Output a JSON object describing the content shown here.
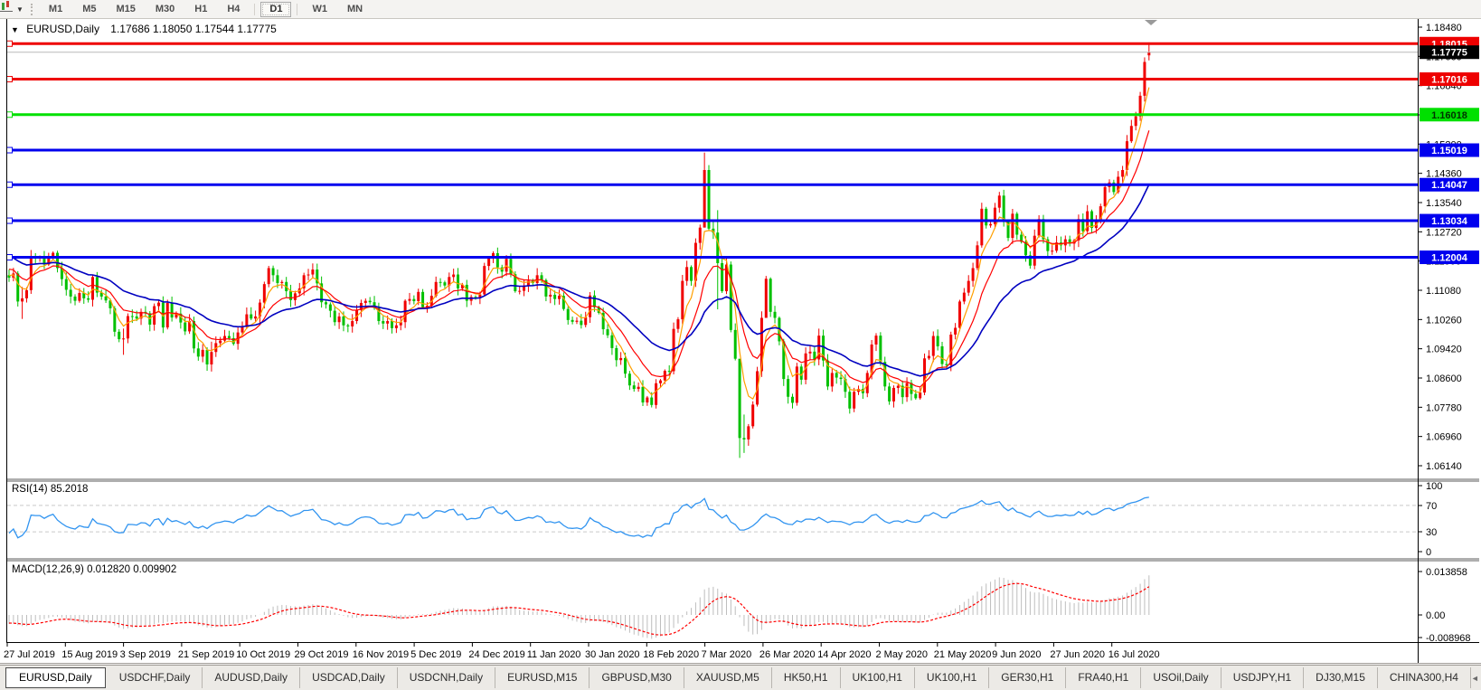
{
  "toolbar": {
    "timeframe_buttons": [
      "M1",
      "M5",
      "M15",
      "M30",
      "H1",
      "H4",
      "D1",
      "W1",
      "MN"
    ],
    "active_timeframe": "D1"
  },
  "icons": {
    "caret_down": "▼",
    "tab_prev": "◄",
    "tab_next": "►"
  },
  "chart": {
    "title": "EURUSD,Daily",
    "ohlc_text": "1.17686 1.18050 1.17544 1.17775"
  },
  "chart_data": {
    "type": "candlestick",
    "symbol": "EURUSD",
    "period": "Daily",
    "title": "EURUSD,Daily",
    "last_ohlc": {
      "open": 1.17686,
      "high": 1.1805,
      "low": 1.17544,
      "close": 1.17775
    },
    "current_price_label": "1.17775",
    "y_axis": {
      "top_value": 1.1848,
      "bottom_value": 1.0614,
      "tick_labels": [
        "1.18480",
        "1.17660",
        "1.16840",
        "1.16020",
        "1.15200",
        "1.14360",
        "1.13540",
        "1.12720",
        "1.11900",
        "1.11080",
        "1.10260",
        "1.09420",
        "1.08600",
        "1.07780",
        "1.06960",
        "1.06140"
      ]
    },
    "x_labels": [
      "27 Jul 2019",
      "15 Aug 2019",
      "3 Sep 2019",
      "21 Sep 2019",
      "10 Oct 2019",
      "29 Oct 2019",
      "16 Nov 2019",
      "5 Dec 2019",
      "24 Dec 2019",
      "11 Jan 2020",
      "30 Jan 2020",
      "18 Feb 2020",
      "7 Mar 2020",
      "26 Mar 2020",
      "14 Apr 2020",
      "2 May 2020",
      "21 May 2020",
      "9 Jun 2020",
      "27 Jun 2020",
      "16 Jul 2020"
    ],
    "closes": [
      1.1143,
      1.1155,
      1.1076,
      1.1085,
      1.1108,
      1.1203,
      1.12,
      1.12,
      1.118,
      1.1199,
      1.1213,
      1.117,
      1.1139,
      1.1109,
      1.109,
      1.1078,
      1.11,
      1.1085,
      1.1081,
      1.1145,
      1.1101,
      1.109,
      1.1079,
      1.1057,
      1.0991,
      1.097,
      1.0972,
      1.1035,
      1.1034,
      1.1028,
      1.1047,
      1.1043,
      1.1011,
      1.1063,
      1.1073,
      1.1003,
      1.1072,
      1.1031,
      1.1042,
      1.1017,
      1.0992,
      1.1021,
      1.0944,
      1.0921,
      1.094,
      1.0899,
      1.0934,
      1.0959,
      1.0966,
      1.0979,
      1.0973,
      1.0957,
      1.0989,
      1.1004,
      1.104,
      1.1028,
      1.1034,
      1.1073,
      1.1125,
      1.117,
      1.115,
      1.1128,
      1.1131,
      1.1105,
      1.108,
      1.1099,
      1.1113,
      1.115,
      1.1152,
      1.1166,
      1.1127,
      1.1074,
      1.1068,
      1.105,
      1.1018,
      1.1034,
      1.1009,
      1.1006,
      1.1021,
      1.1052,
      1.1072,
      1.1078,
      1.1074,
      1.1058,
      1.1021,
      1.1014,
      1.1021,
      1.1001,
      1.1009,
      1.1018,
      1.1078,
      1.1083,
      1.1077,
      1.1103,
      1.106,
      1.1064,
      1.1092,
      1.1131,
      1.113,
      1.1121,
      1.1145,
      1.1152,
      1.1113,
      1.1123,
      1.1078,
      1.1089,
      1.1087,
      1.1096,
      1.1176,
      1.1199,
      1.1212,
      1.1172,
      1.116,
      1.1196,
      1.1153,
      1.1105,
      1.1106,
      1.1121,
      1.1134,
      1.1128,
      1.115,
      1.1136,
      1.109,
      1.1095,
      1.1083,
      1.1092,
      1.1055,
      1.1024,
      1.1019,
      1.1022,
      1.101,
      1.1032,
      1.1093,
      1.106,
      1.1044,
      1.0998,
      1.0981,
      1.0945,
      1.0911,
      1.0917,
      1.0873,
      1.084,
      1.083,
      1.0836,
      1.0792,
      1.0806,
      1.0785,
      1.0846,
      1.0854,
      1.0881,
      1.088,
      1.0999,
      1.1026,
      1.1134,
      1.1173,
      1.1134,
      1.1241,
      1.1284,
      1.1446,
      1.1281,
      1.127,
      1.1184,
      1.1105,
      1.118,
      1.0996,
      1.0915,
      1.0692,
      1.0688,
      1.0725,
      1.0786,
      1.088,
      1.103,
      1.114,
      1.1047,
      1.103,
      1.0964,
      1.0858,
      1.0808,
      1.0791,
      1.0893,
      1.0856,
      1.093,
      1.0935,
      1.0913,
      1.098,
      1.091,
      1.0837,
      1.0875,
      1.0862,
      1.0858,
      1.0822,
      1.0775,
      1.0822,
      1.083,
      1.0818,
      1.0875,
      1.0955,
      1.098,
      1.0906,
      1.0837,
      1.0795,
      1.0833,
      1.0839,
      1.0807,
      1.0847,
      1.0816,
      1.0804,
      1.082,
      1.0916,
      1.0923,
      1.0979,
      1.095,
      1.09,
      1.0897,
      1.0983,
      1.1002,
      1.1076,
      1.1101,
      1.1134,
      1.117,
      1.1234,
      1.1337,
      1.129,
      1.1294,
      1.134,
      1.1374,
      1.1301,
      1.1255,
      1.1323,
      1.1264,
      1.1244,
      1.1206,
      1.1177,
      1.1261,
      1.1308,
      1.1251,
      1.1218,
      1.1219,
      1.1242,
      1.1234,
      1.1251,
      1.1239,
      1.1248,
      1.1308,
      1.1274,
      1.133,
      1.1283,
      1.13,
      1.1344,
      1.1398,
      1.1411,
      1.1384,
      1.1427,
      1.1446,
      1.1527,
      1.157,
      1.1597,
      1.1655,
      1.175,
      1.17775
    ],
    "warmup_closes": [
      1.118,
      1.12,
      1.1185,
      1.121,
      1.122,
      1.1195,
      1.1215,
      1.123,
      1.124,
      1.122,
      1.126,
      1.1285,
      1.13,
      1.132,
      1.134,
      1.138,
      1.137,
      1.139,
      1.1365,
      1.135,
      1.137,
      1.1385,
      1.136,
      1.134,
      1.132,
      1.13,
      1.131,
      1.129,
      1.128,
      1.127,
      1.1285,
      1.1275,
      1.1268,
      1.126,
      1.1252,
      1.127,
      1.1262,
      1.1248,
      1.124,
      1.1235,
      1.1228,
      1.122,
      1.1232,
      1.1225,
      1.1215,
      1.1208,
      1.12,
      1.1212,
      1.1205,
      1.1195,
      1.1188,
      1.118,
      1.1192,
      1.1185,
      1.1175,
      1.1168,
      1.116,
      1.1152,
      1.1145,
      1.1138
    ],
    "extremes": {
      "3": [
        1.1117,
        1.1027
      ],
      "26": [
        1.1,
        1.0926
      ],
      "46": [
        1.0963,
        1.0879
      ],
      "146": [
        1.0821,
        1.0778
      ],
      "158": [
        1.1495,
        1.1289
      ],
      "161": [
        1.1333,
        1.1054
      ],
      "166": [
        1.0831,
        1.0636
      ],
      "167": [
        1.0758,
        1.065
      ],
      "172": [
        1.1148,
        1.1087
      ]
    },
    "hlines": [
      {
        "value": 1.18015,
        "label": "1.18015",
        "color": "#ee0000",
        "text_color": "#ffffff"
      },
      {
        "value": 1.17016,
        "label": "1.17016",
        "color": "#ee0000",
        "text_color": "#ffffff"
      },
      {
        "value": 1.16018,
        "label": "1.16018",
        "color": "#00e000",
        "text_color": "#003300"
      },
      {
        "value": 1.15019,
        "label": "1.15019",
        "color": "#0000ee",
        "text_color": "#ffffff"
      },
      {
        "value": 1.14047,
        "label": "1.14047",
        "color": "#0000ee",
        "text_color": "#ffffff"
      },
      {
        "value": 1.13034,
        "label": "1.13034",
        "color": "#0000ee",
        "text_color": "#ffffff"
      },
      {
        "value": 1.12004,
        "label": "1.12004",
        "color": "#0000ee",
        "text_color": "#ffffff"
      }
    ],
    "moving_averages": [
      {
        "period": 5,
        "method": "ema",
        "color": "#ff9f00",
        "width": 1.2
      },
      {
        "period": 12,
        "method": "ema",
        "color": "#ff0000",
        "width": 1.2
      },
      {
        "period": 30,
        "method": "ema",
        "color": "#0000c0",
        "width": 1.6
      }
    ],
    "indicators": {
      "rsi": {
        "label": "RSI(14) 85.2018",
        "period": 14,
        "last_value": 85.2018,
        "levels": [
          70,
          30
        ],
        "scale_ticks": [
          "100",
          "70",
          "30",
          "0"
        ],
        "color": "#3194f0"
      },
      "macd": {
        "label": "MACD(12,26,9) 0.012820 0.009902",
        "fast": 12,
        "slow": 26,
        "signal_period": 9,
        "last_macd": 0.01282,
        "last_signal": 0.009902,
        "scale_ticks": [
          "0.013858",
          "0.00",
          "-0.008968"
        ],
        "histogram_color": "#bdbdbd",
        "signal_color": "#ff0000"
      }
    },
    "colors": {
      "up_candle": "#f00000",
      "down_candle": "#00c000",
      "bid_line": "#b9b9b9",
      "background": "#ffffff",
      "axis_text": "#000000",
      "level_dash": "#c9c9c9"
    }
  },
  "tabs": {
    "items": [
      "EURUSD,Daily",
      "USDCHF,Daily",
      "AUDUSD,Daily",
      "USDCAD,Daily",
      "USDCNH,Daily",
      "EURUSD,M15",
      "GBPUSD,M30",
      "XAUUSD,M5",
      "HK50,H1",
      "UK100,H1",
      "UK100,H1",
      "GER30,H1",
      "FRA40,H1",
      "USOil,Daily",
      "USDJPY,H1",
      "DJ30,M15",
      "CHINA300,H4"
    ],
    "active_index": 0
  }
}
